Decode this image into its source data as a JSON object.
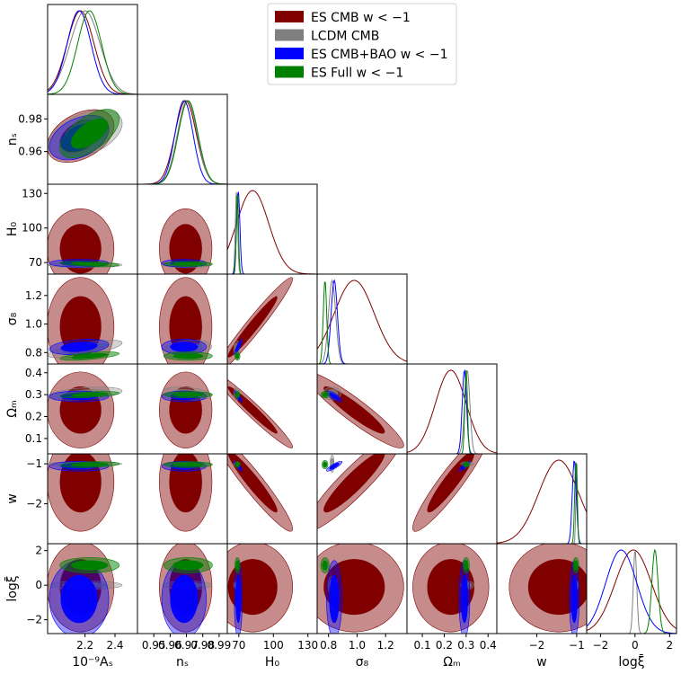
{
  "chart_data": {
    "type": "corner",
    "legend": {
      "placement": "top-center",
      "entries": [
        {
          "label": "ES CMB w < −1",
          "color": "#800000"
        },
        {
          "label": "LCDM CMB",
          "color": "#808080"
        },
        {
          "label": "ES CMB+BAO  w < −1",
          "color": "#0000ff"
        },
        {
          "label": "ES Full w < −1",
          "color": "#008000"
        }
      ]
    },
    "parameters": [
      {
        "key": "As",
        "label": "10⁻⁹Aₛ",
        "range": [
          1.95,
          2.55
        ],
        "ticks": [
          2.2,
          2.4
        ],
        "tick_labels": [
          "2.2",
          "2.4"
        ]
      },
      {
        "key": "ns",
        "label": "nₛ",
        "range": [
          0.94,
          0.995
        ],
        "ticks": [
          0.95,
          0.96,
          0.97,
          0.98,
          0.99
        ],
        "tick_labels": [
          "0.95",
          "0.96",
          "0.97",
          "0.98",
          "0.99"
        ]
      },
      {
        "key": "H0",
        "label": "H₀",
        "range": [
          60,
          138
        ],
        "ticks": [
          70,
          100,
          130
        ],
        "tick_labels": [
          "70",
          "100",
          "130"
        ]
      },
      {
        "key": "sigma8",
        "label": "σ₈",
        "range": [
          0.72,
          1.35
        ],
        "ticks": [
          0.8,
          1.0,
          1.2
        ],
        "tick_labels": [
          "0.8",
          "1.0",
          "1.2"
        ]
      },
      {
        "key": "Om",
        "label": "Ωₘ",
        "range": [
          0.03,
          0.44
        ],
        "ticks": [
          0.1,
          0.2,
          0.3,
          0.4
        ],
        "tick_labels": [
          "0.1",
          "0.2",
          "0.3",
          "0.4"
        ]
      },
      {
        "key": "w",
        "label": "w",
        "range": [
          -3.0,
          -0.75
        ],
        "ticks": [
          -2,
          -1
        ],
        "tick_labels": [
          "−2",
          "−1"
        ]
      },
      {
        "key": "logxi",
        "label": "logξ̄",
        "range": [
          -2.8,
          2.4
        ],
        "ticks": [
          -2,
          0,
          2
        ],
        "tick_labels": [
          "−2",
          "0",
          "2"
        ]
      }
    ],
    "row_axis_ticks": {
      "ns": {
        "ticks": [
          0.96,
          0.98
        ],
        "tick_labels": [
          "0.96",
          "0.98"
        ]
      },
      "H0": {
        "ticks": [
          70,
          100,
          130
        ],
        "tick_labels": [
          "70",
          "100",
          "130"
        ]
      },
      "sigma8": {
        "ticks": [
          0.8,
          1.0,
          1.2
        ],
        "tick_labels": [
          "0.8",
          "1.0",
          "1.2"
        ]
      },
      "Om": {
        "ticks": [
          0.1,
          0.2,
          0.3,
          0.4
        ],
        "tick_labels": [
          "0.1",
          "0.2",
          "0.3",
          "0.4"
        ]
      },
      "w": {
        "ticks": [
          -2,
          -1
        ],
        "tick_labels": [
          "−2",
          "−1"
        ]
      },
      "logxi": {
        "ticks": [
          -2,
          0,
          2
        ],
        "tick_labels": [
          "−2",
          "0",
          "2"
        ]
      }
    },
    "series": [
      {
        "name": "ES CMB w < −1",
        "color": "#800000",
        "means": {
          "As": 2.17,
          "ns": 0.9695,
          "H0": 82,
          "sigma8": 0.98,
          "Om": 0.23,
          "w": -1.45,
          "logxi": -0.1
        },
        "sigmas": {
          "As": 0.09,
          "ns": 0.0065,
          "H0": 14,
          "sigma8": 0.14,
          "Om": 0.07,
          "w": 0.5,
          "logxi": 1.05
        },
        "corr": {
          "H0-sigma8": 0.97,
          "H0-Om": -0.97,
          "H0-w": -0.95,
          "sigma8-Om": -0.93,
          "sigma8-w": 0.92,
          "Om-w": 0.93,
          "As-ns": 0.4
        }
      },
      {
        "name": "LCDM CMB",
        "color": "#808080",
        "means": {
          "As": 2.2,
          "ns": 0.9705,
          "H0": 68,
          "sigma8": 0.825,
          "Om": 0.305,
          "w": -1.0,
          "logxi": 0.0
        },
        "sigmas": {
          "As": 0.1,
          "ns": 0.006,
          "H0": 1.0,
          "sigma8": 0.025,
          "Om": 0.012,
          "w": 0.02,
          "logxi": 0.1
        },
        "corr": {
          "As-ns": 0.45,
          "As-sigma8": 0.7,
          "As-Om": 0.4,
          "ns-sigma8": 0.3,
          "ns-Om": -0.3
        }
      },
      {
        "name": "ES CMB+BAO  w < −1",
        "color": "#0000ff",
        "means": {
          "As": 2.16,
          "ns": 0.9685,
          "H0": 69.5,
          "sigma8": 0.84,
          "Om": 0.292,
          "w": -1.06,
          "logxi": -0.8
        },
        "sigmas": {
          "As": 0.08,
          "ns": 0.0055,
          "H0": 1.4,
          "sigma8": 0.022,
          "Om": 0.01,
          "w": 0.05,
          "logxi": 0.9
        },
        "corr": {
          "H0-sigma8": 0.9,
          "H0-Om": -0.9,
          "H0-w": -0.9,
          "sigma8-Om": -0.8,
          "sigma8-w": 0.85,
          "Om-w": 0.85,
          "As-ns": 0.4,
          "As-sigma8": 0.3
        }
      },
      {
        "name": "ES Full w < −1",
        "color": "#008000",
        "means": {
          "As": 2.23,
          "ns": 0.971,
          "H0": 68.8,
          "sigma8": 0.775,
          "Om": 0.3,
          "w": -1.02,
          "logxi": 1.15
        },
        "sigmas": {
          "As": 0.08,
          "ns": 0.006,
          "H0": 0.9,
          "sigma8": 0.012,
          "Om": 0.006,
          "w": 0.03,
          "logxi": 0.18
        },
        "corr": {
          "As-ns": 0.6,
          "As-sigma8": 0.6,
          "As-Om": 0.5,
          "As-H0": -0.4,
          "As-w": 0.3
        }
      }
    ],
    "contour_levels": [
      "68%",
      "95%"
    ]
  }
}
